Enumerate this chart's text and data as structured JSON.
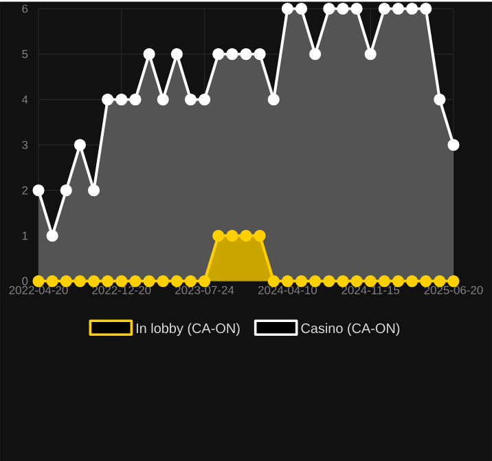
{
  "chart_data": {
    "type": "area",
    "categories": [
      "2022-04-20",
      null,
      null,
      null,
      null,
      null,
      "2022-12-20",
      null,
      null,
      null,
      null,
      null,
      "2023-07-24",
      null,
      null,
      null,
      null,
      null,
      "2024-04-10",
      null,
      null,
      null,
      null,
      null,
      "2024-11-15",
      null,
      null,
      null,
      null,
      null,
      "2025-06-20"
    ],
    "series": [
      {
        "name": "In lobby (CA-ON)",
        "color": "#ffd000",
        "values": [
          0,
          0,
          0,
          0,
          0,
          0,
          0,
          0,
          0,
          0,
          0,
          0,
          0,
          1,
          1,
          1,
          1,
          0,
          0,
          0,
          0,
          0,
          0,
          0,
          0,
          0,
          0,
          0,
          0,
          0,
          0
        ]
      },
      {
        "name": "Casino (CA-ON)",
        "color": "#ffffff",
        "values": [
          2,
          1,
          2,
          3,
          2,
          4,
          4,
          4,
          5,
          4,
          5,
          4,
          4,
          5,
          5,
          5,
          5,
          4,
          6,
          6,
          5,
          6,
          6,
          6,
          5,
          6,
          6,
          6,
          6,
          4,
          3
        ]
      }
    ],
    "ylim": [
      0,
      6
    ],
    "yticks": [
      0,
      1,
      2,
      3,
      4,
      5,
      6
    ],
    "grid": true,
    "legend": "bottom",
    "marker": "circle"
  }
}
